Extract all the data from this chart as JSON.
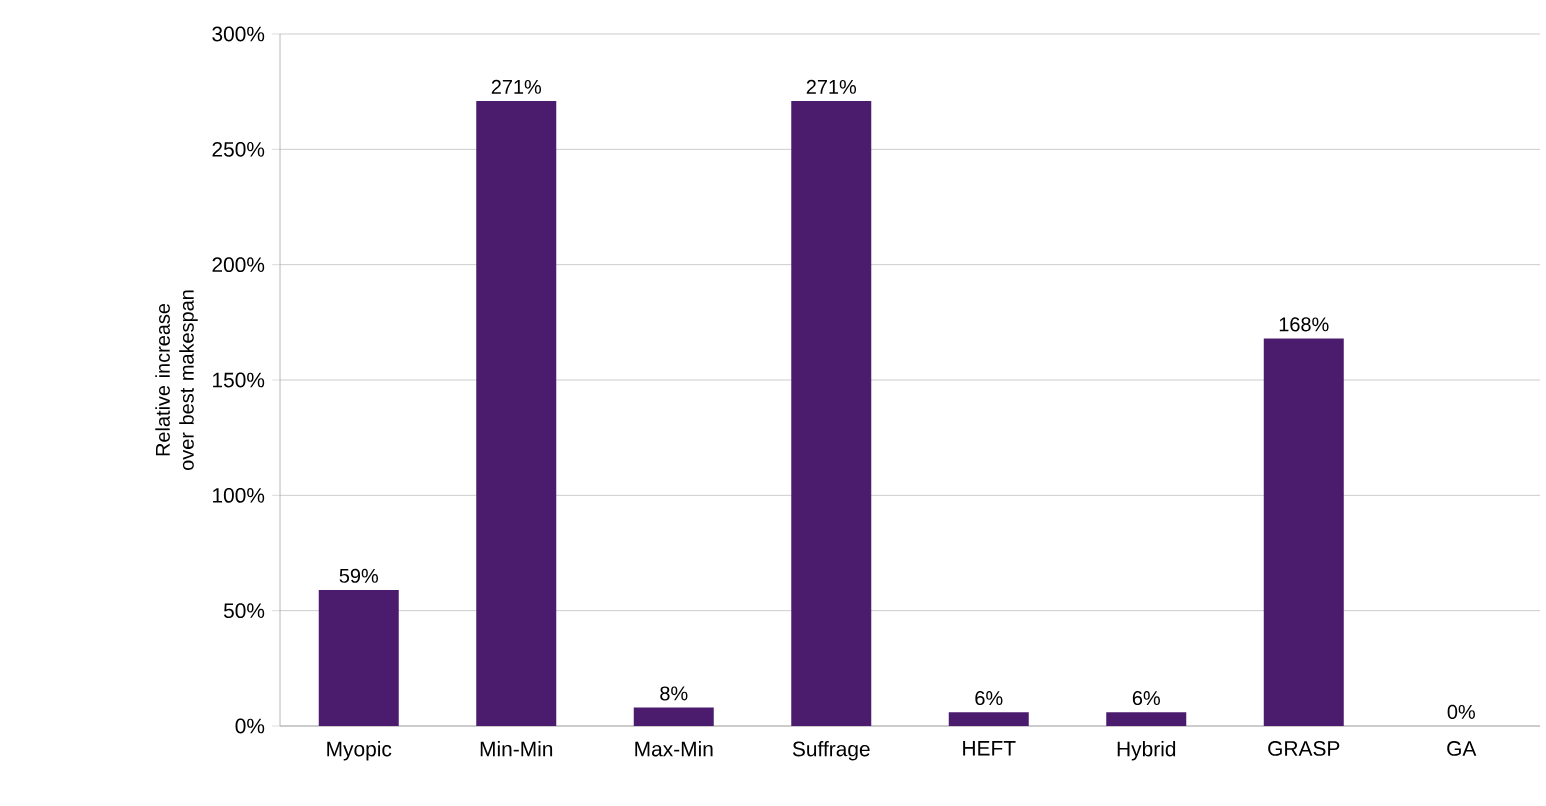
{
  "chart_data": {
    "type": "bar",
    "ylabel": "Relative increase over best makespan",
    "categories": [
      "Myopic",
      "Min-Min",
      "Max-Min",
      "Suffrage",
      "HEFT",
      "Hybrid",
      "GRASP",
      "GA"
    ],
    "values": [
      59,
      271,
      8,
      271,
      6,
      6,
      168,
      0
    ],
    "value_labels": [
      "59%",
      "271%",
      "8%",
      "271%",
      "6%",
      "6%",
      "168%",
      "0%"
    ],
    "color": "#4b1c6e",
    "ylim": [
      0,
      300
    ],
    "yticks": [
      {
        "value": 0,
        "label": "0%"
      },
      {
        "value": 50,
        "label": "50%"
      },
      {
        "value": 100,
        "label": "100%"
      },
      {
        "value": 150,
        "label": "150%"
      },
      {
        "value": 200,
        "label": "200%"
      },
      {
        "value": 250,
        "label": "250%"
      },
      {
        "value": 300,
        "label": "300%"
      }
    ],
    "grid": "y"
  }
}
